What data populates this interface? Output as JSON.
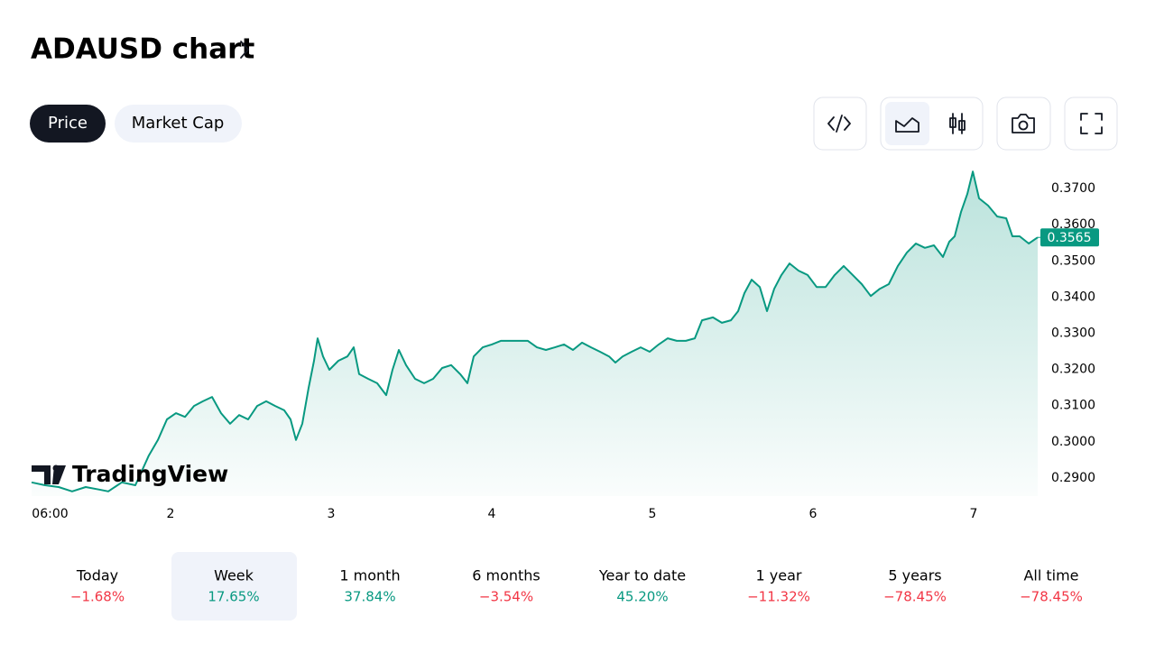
{
  "header": {
    "title": "ADAUSD chart"
  },
  "tabs": [
    "Price",
    "Market Cap"
  ],
  "chart_data": {
    "type": "area",
    "color": "#089981",
    "x": [
      3.24,
      5.26,
      7.28,
      9.3,
      11.33,
      13.35,
      14.7,
      16.72,
      18.74,
      20.76,
      22.11,
      23.46,
      24.81,
      26.16,
      27.51,
      28.85,
      30.2,
      31.55,
      32.9,
      34.25,
      35.6,
      36.94,
      38.29,
      39.64,
      40.99,
      41.93,
      42.74,
      43.69,
      44.63,
      45.44,
      45.98,
      46.79,
      47.73,
      49.08,
      50.43,
      51.37,
      52.18,
      53.53,
      54.88,
      56.22,
      57.17,
      58.11,
      59.19,
      60.54,
      61.89,
      63.24,
      64.58,
      65.93,
      67.28,
      68.36,
      69.3,
      70.65,
      72.0,
      73.35,
      74.7,
      76.04,
      77.39,
      78.74,
      80.09,
      81.44,
      82.79,
      84.13,
      85.48,
      86.83,
      88.18,
      89.53,
      90.47,
      91.55,
      92.9,
      94.25,
      95.6,
      96.94,
      98.29,
      99.64,
      100.99,
      102.34,
      103.42,
      105.04,
      106.38,
      107.73,
      108.81,
      109.75,
      110.83,
      112.04,
      113.12,
      114.2,
      115.28,
      116.49,
      117.84,
      119.19,
      120.54,
      121.89,
      123.24,
      124.58,
      125.93,
      127.28,
      128.63,
      129.98,
      131.33,
      132.67,
      134.02,
      135.37,
      136.72,
      138.07,
      139.42,
      140.36,
      141.17,
      142.11,
      143.06,
      143.87,
      144.81,
      146.16,
      147.51,
      148.86,
      149.8,
      150.88,
      152.23,
      153.57
    ],
    "values": [
      0.2888,
      0.288,
      0.2875,
      0.2863,
      0.2875,
      0.2868,
      0.2863,
      0.2888,
      0.288,
      0.2962,
      0.3005,
      0.3062,
      0.3079,
      0.3069,
      0.3099,
      0.3112,
      0.3124,
      0.3079,
      0.305,
      0.3074,
      0.3062,
      0.3099,
      0.3112,
      0.3099,
      0.3087,
      0.3062,
      0.3005,
      0.305,
      0.3149,
      0.3224,
      0.3286,
      0.3236,
      0.3199,
      0.3224,
      0.3236,
      0.3261,
      0.3187,
      0.3174,
      0.3162,
      0.3129,
      0.3199,
      0.3254,
      0.3212,
      0.3174,
      0.3162,
      0.3174,
      0.3204,
      0.3212,
      0.3187,
      0.3162,
      0.3236,
      0.3261,
      0.3269,
      0.3279,
      0.3279,
      0.3279,
      0.3279,
      0.3261,
      0.3254,
      0.3261,
      0.3269,
      0.3254,
      0.3274,
      0.3261,
      0.3249,
      0.3236,
      0.3219,
      0.3236,
      0.3249,
      0.3261,
      0.3249,
      0.3269,
      0.3286,
      0.3279,
      0.3279,
      0.3286,
      0.3336,
      0.3344,
      0.3329,
      0.3336,
      0.3361,
      0.3411,
      0.3448,
      0.3428,
      0.3361,
      0.3423,
      0.3461,
      0.3493,
      0.3473,
      0.3461,
      0.3428,
      0.3428,
      0.3461,
      0.3486,
      0.3461,
      0.3436,
      0.3403,
      0.3423,
      0.3436,
      0.3486,
      0.3523,
      0.3548,
      0.3536,
      0.3543,
      0.3511,
      0.3553,
      0.3568,
      0.3635,
      0.3685,
      0.3747,
      0.3673,
      0.3653,
      0.3623,
      0.3618,
      0.3568,
      0.3568,
      0.3548,
      0.3565
    ],
    "xlim": [
      3.24,
      153.57
    ],
    "ylim": [
      0.285,
      0.376
    ],
    "xticks": [
      {
        "value": 6,
        "label": "06:00"
      },
      {
        "value": 24,
        "label": "2"
      },
      {
        "value": 48,
        "label": "3"
      },
      {
        "value": 72,
        "label": "4"
      },
      {
        "value": 96,
        "label": "5"
      },
      {
        "value": 120,
        "label": "6"
      },
      {
        "value": 144,
        "label": "7"
      }
    ],
    "yticks": [
      {
        "value": 0.29,
        "label": "0.2900"
      },
      {
        "value": 0.3,
        "label": "0.3000"
      },
      {
        "value": 0.31,
        "label": "0.3100"
      },
      {
        "value": 0.32,
        "label": "0.3200"
      },
      {
        "value": 0.33,
        "label": "0.3300"
      },
      {
        "value": 0.34,
        "label": "0.3400"
      },
      {
        "value": 0.35,
        "label": "0.3500"
      },
      {
        "value": 0.36,
        "label": "0.3600"
      },
      {
        "value": 0.37,
        "label": "0.3700"
      }
    ],
    "last_price": {
      "value": 0.3565,
      "label": "0.3565"
    },
    "watermark": "TradingView"
  },
  "periods": {
    "labels": [
      "Today",
      "Week",
      "1 month",
      "6 months",
      "Year to date",
      "1 year",
      "5 years",
      "All time"
    ],
    "values": [
      -1.68,
      17.65,
      37.84,
      -3.54,
      45.2,
      -11.32,
      -78.45,
      -78.45
    ],
    "value_labels": [
      "−1.68%",
      "17.65%",
      "37.84%",
      "−3.54%",
      "45.20%",
      "−11.32%",
      "−78.45%",
      "−78.45%"
    ],
    "selected": 1,
    "up_color": "#089981",
    "down_color": "#f23645"
  }
}
